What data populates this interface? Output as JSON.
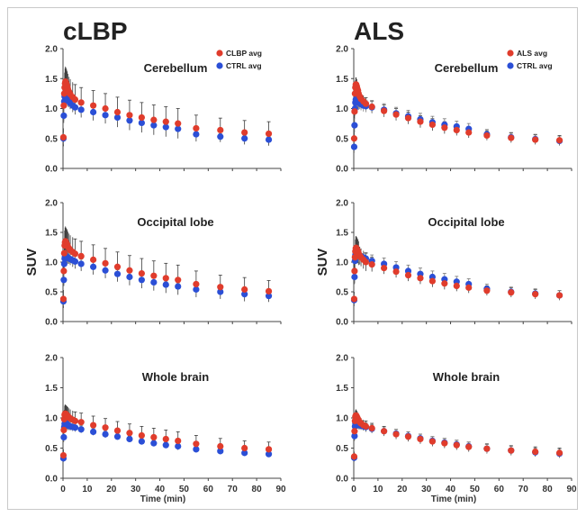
{
  "figure": {
    "columns": [
      {
        "title": "cLBP",
        "legend": [
          {
            "label": "CLBP avg",
            "color": "#e03c2c"
          },
          {
            "label": "CTRL avg",
            "color": "#2b4fd6"
          }
        ]
      },
      {
        "title": "ALS",
        "legend": [
          {
            "label": "ALS avg",
            "color": "#e03c2c"
          },
          {
            "label": "CTRL avg",
            "color": "#2b4fd6"
          }
        ]
      }
    ],
    "ylabel": "SUV",
    "xlabel": "Time (min)"
  },
  "chart_data": [
    {
      "type": "scatter",
      "title": "Cerebellum",
      "x": [
        0.17,
        0.33,
        0.5,
        0.67,
        0.83,
        1.0,
        1.25,
        1.5,
        1.75,
        2.0,
        2.5,
        3.0,
        4.0,
        5.0,
        7.5,
        12.5,
        17.5,
        22.5,
        27.5,
        32.5,
        37.5,
        42.5,
        47.5,
        55,
        65,
        75,
        85
      ],
      "series": [
        {
          "name": "CLBP avg",
          "color": "#e03c2c",
          "values": [
            0.52,
            1.05,
            1.25,
            1.35,
            1.42,
            1.45,
            1.43,
            1.4,
            1.37,
            1.33,
            1.28,
            1.24,
            1.19,
            1.15,
            1.1,
            1.05,
            1.0,
            0.94,
            0.89,
            0.85,
            0.81,
            0.78,
            0.75,
            0.67,
            0.64,
            0.6,
            0.58
          ],
          "err": [
            0.15,
            0.25,
            0.25,
            0.25,
            0.25,
            0.25,
            0.25,
            0.25,
            0.25,
            0.25,
            0.25,
            0.25,
            0.25,
            0.25,
            0.25,
            0.25,
            0.25,
            0.25,
            0.25,
            0.25,
            0.25,
            0.25,
            0.25,
            0.22,
            0.2,
            0.2,
            0.2
          ]
        },
        {
          "name": "CTRL avg",
          "color": "#2b4fd6",
          "values": [
            0.5,
            0.88,
            1.12,
            1.2,
            1.25,
            1.25,
            1.22,
            1.2,
            1.18,
            1.15,
            1.12,
            1.09,
            1.05,
            1.02,
            0.98,
            0.94,
            0.89,
            0.85,
            0.8,
            0.76,
            0.72,
            0.69,
            0.66,
            0.57,
            0.53,
            0.5,
            0.48
          ],
          "err": [
            0.1,
            0.12,
            0.12,
            0.12,
            0.12,
            0.12,
            0.12,
            0.12,
            0.12,
            0.12,
            0.1,
            0.1,
            0.1,
            0.1,
            0.08,
            0.08,
            0.08,
            0.07,
            0.07,
            0.07,
            0.07,
            0.06,
            0.06,
            0.06,
            0.05,
            0.05,
            0.05
          ]
        }
      ],
      "xlim": [
        0,
        90
      ],
      "ylim": [
        0,
        2
      ],
      "xticks": [
        0,
        10,
        20,
        30,
        40,
        50,
        60,
        70,
        80,
        90
      ],
      "yticks": [
        0.0,
        0.5,
        1.0,
        1.5,
        2.0
      ]
    },
    {
      "type": "scatter",
      "title": "Cerebellum",
      "x": [
        0.17,
        0.33,
        0.5,
        0.67,
        0.83,
        1.0,
        1.25,
        1.5,
        1.75,
        2.0,
        2.5,
        3.0,
        4.0,
        5.0,
        7.5,
        12.5,
        17.5,
        22.5,
        27.5,
        32.5,
        37.5,
        42.5,
        47.5,
        55,
        65,
        75,
        85
      ],
      "series": [
        {
          "name": "ALS avg",
          "color": "#e03c2c",
          "values": [
            0.5,
            0.95,
            1.25,
            1.35,
            1.4,
            1.4,
            1.37,
            1.33,
            1.3,
            1.25,
            1.2,
            1.16,
            1.12,
            1.08,
            1.03,
            0.96,
            0.9,
            0.84,
            0.78,
            0.73,
            0.68,
            0.64,
            0.6,
            0.55,
            0.51,
            0.48,
            0.47
          ],
          "err": [
            0.1,
            0.12,
            0.12,
            0.12,
            0.12,
            0.12,
            0.12,
            0.12,
            0.12,
            0.12,
            0.1,
            0.1,
            0.1,
            0.1,
            0.1,
            0.1,
            0.1,
            0.1,
            0.1,
            0.1,
            0.1,
            0.09,
            0.09,
            0.08,
            0.08,
            0.08,
            0.08
          ]
        },
        {
          "name": "CTRL avg",
          "color": "#2b4fd6",
          "values": [
            0.36,
            0.72,
            1.0,
            1.1,
            1.15,
            1.16,
            1.15,
            1.13,
            1.12,
            1.1,
            1.09,
            1.07,
            1.05,
            1.04,
            1.02,
            0.98,
            0.92,
            0.87,
            0.82,
            0.77,
            0.73,
            0.7,
            0.66,
            0.57,
            0.52,
            0.49,
            0.46
          ],
          "err": [
            0.1,
            0.12,
            0.12,
            0.12,
            0.12,
            0.12,
            0.12,
            0.12,
            0.12,
            0.12,
            0.1,
            0.1,
            0.1,
            0.1,
            0.1,
            0.1,
            0.1,
            0.1,
            0.1,
            0.1,
            0.1,
            0.09,
            0.09,
            0.08,
            0.08,
            0.08,
            0.08
          ]
        }
      ],
      "xlim": [
        0,
        90
      ],
      "ylim": [
        0,
        2
      ],
      "xticks": [
        0,
        10,
        20,
        30,
        40,
        50,
        60,
        70,
        80,
        90
      ],
      "yticks": [
        0.0,
        0.5,
        1.0,
        1.5,
        2.0
      ]
    },
    {
      "type": "scatter",
      "title": "Occipital lobe",
      "x": [
        0.17,
        0.33,
        0.5,
        0.67,
        0.83,
        1.0,
        1.25,
        1.5,
        1.75,
        2.0,
        2.5,
        3.0,
        4.0,
        5.0,
        7.5,
        12.5,
        17.5,
        22.5,
        27.5,
        32.5,
        37.5,
        42.5,
        47.5,
        55,
        65,
        75,
        85
      ],
      "series": [
        {
          "name": "CLBP avg",
          "color": "#e03c2c",
          "values": [
            0.38,
            0.85,
            1.15,
            1.28,
            1.33,
            1.35,
            1.33,
            1.31,
            1.29,
            1.26,
            1.23,
            1.2,
            1.17,
            1.14,
            1.1,
            1.04,
            0.98,
            0.92,
            0.86,
            0.81,
            0.77,
            0.73,
            0.7,
            0.63,
            0.58,
            0.54,
            0.51
          ],
          "err": [
            0.15,
            0.25,
            0.25,
            0.25,
            0.25,
            0.25,
            0.25,
            0.25,
            0.25,
            0.25,
            0.25,
            0.25,
            0.25,
            0.25,
            0.25,
            0.25,
            0.25,
            0.25,
            0.25,
            0.25,
            0.25,
            0.25,
            0.25,
            0.22,
            0.2,
            0.2,
            0.18
          ]
        },
        {
          "name": "CTRL avg",
          "color": "#2b4fd6",
          "values": [
            0.34,
            0.7,
            0.97,
            1.06,
            1.1,
            1.11,
            1.1,
            1.09,
            1.08,
            1.07,
            1.06,
            1.05,
            1.03,
            1.01,
            0.97,
            0.92,
            0.86,
            0.8,
            0.75,
            0.7,
            0.66,
            0.62,
            0.59,
            0.54,
            0.5,
            0.46,
            0.43
          ],
          "err": [
            0.08,
            0.1,
            0.1,
            0.1,
            0.1,
            0.1,
            0.1,
            0.1,
            0.1,
            0.1,
            0.09,
            0.09,
            0.09,
            0.09,
            0.08,
            0.08,
            0.08,
            0.07,
            0.07,
            0.07,
            0.07,
            0.06,
            0.06,
            0.06,
            0.05,
            0.05,
            0.05
          ]
        }
      ],
      "xlim": [
        0,
        90
      ],
      "ylim": [
        0,
        2
      ],
      "xticks": [
        0,
        10,
        20,
        30,
        40,
        50,
        60,
        70,
        80,
        90
      ],
      "yticks": [
        0.0,
        0.5,
        1.0,
        1.5,
        2.0
      ]
    },
    {
      "type": "scatter",
      "title": "Occipital lobe",
      "x": [
        0.17,
        0.33,
        0.5,
        0.67,
        0.83,
        1.0,
        1.25,
        1.5,
        1.75,
        2.0,
        2.5,
        3.0,
        4.0,
        5.0,
        7.5,
        12.5,
        17.5,
        22.5,
        27.5,
        32.5,
        37.5,
        42.5,
        47.5,
        55,
        65,
        75,
        85
      ],
      "series": [
        {
          "name": "ALS avg",
          "color": "#e03c2c",
          "values": [
            0.38,
            0.85,
            1.08,
            1.18,
            1.23,
            1.24,
            1.22,
            1.2,
            1.18,
            1.15,
            1.11,
            1.08,
            1.04,
            1.0,
            0.96,
            0.9,
            0.84,
            0.78,
            0.73,
            0.68,
            0.64,
            0.6,
            0.57,
            0.52,
            0.49,
            0.46,
            0.44
          ],
          "err": [
            0.12,
            0.2,
            0.2,
            0.2,
            0.2,
            0.2,
            0.2,
            0.2,
            0.2,
            0.2,
            0.15,
            0.15,
            0.15,
            0.15,
            0.12,
            0.1,
            0.1,
            0.1,
            0.1,
            0.1,
            0.1,
            0.09,
            0.09,
            0.08,
            0.08,
            0.08,
            0.08
          ]
        },
        {
          "name": "CTRL avg",
          "color": "#2b4fd6",
          "values": [
            0.36,
            0.75,
            1.02,
            1.12,
            1.16,
            1.17,
            1.16,
            1.15,
            1.14,
            1.12,
            1.11,
            1.1,
            1.08,
            1.06,
            1.02,
            0.97,
            0.91,
            0.85,
            0.8,
            0.75,
            0.71,
            0.67,
            0.63,
            0.55,
            0.5,
            0.47,
            0.44
          ],
          "err": [
            0.1,
            0.12,
            0.12,
            0.12,
            0.12,
            0.12,
            0.12,
            0.12,
            0.12,
            0.12,
            0.1,
            0.1,
            0.1,
            0.1,
            0.1,
            0.1,
            0.1,
            0.1,
            0.1,
            0.1,
            0.1,
            0.09,
            0.09,
            0.08,
            0.08,
            0.08,
            0.08
          ]
        }
      ],
      "xlim": [
        0,
        90
      ],
      "ylim": [
        0,
        2
      ],
      "xticks": [
        0,
        10,
        20,
        30,
        40,
        50,
        60,
        70,
        80,
        90
      ],
      "yticks": [
        0.0,
        0.5,
        1.0,
        1.5,
        2.0
      ]
    },
    {
      "type": "scatter",
      "title": "Whole brain",
      "x": [
        0.17,
        0.33,
        0.5,
        0.67,
        0.83,
        1.0,
        1.25,
        1.5,
        1.75,
        2.0,
        2.5,
        3.0,
        4.0,
        5.0,
        7.5,
        12.5,
        17.5,
        22.5,
        27.5,
        32.5,
        37.5,
        42.5,
        47.5,
        55,
        65,
        75,
        85
      ],
      "series": [
        {
          "name": "CLBP avg",
          "color": "#e03c2c",
          "values": [
            0.38,
            0.8,
            0.98,
            1.05,
            1.07,
            1.07,
            1.06,
            1.05,
            1.04,
            1.03,
            1.01,
            0.99,
            0.97,
            0.95,
            0.93,
            0.88,
            0.84,
            0.79,
            0.75,
            0.71,
            0.68,
            0.65,
            0.62,
            0.57,
            0.53,
            0.5,
            0.48
          ],
          "err": [
            0.1,
            0.15,
            0.15,
            0.15,
            0.15,
            0.15,
            0.15,
            0.15,
            0.15,
            0.15,
            0.15,
            0.15,
            0.15,
            0.15,
            0.15,
            0.15,
            0.15,
            0.15,
            0.15,
            0.15,
            0.15,
            0.15,
            0.15,
            0.14,
            0.13,
            0.12,
            0.12
          ]
        },
        {
          "name": "CTRL avg",
          "color": "#2b4fd6",
          "values": [
            0.33,
            0.68,
            0.85,
            0.9,
            0.92,
            0.92,
            0.91,
            0.9,
            0.89,
            0.88,
            0.87,
            0.86,
            0.85,
            0.84,
            0.81,
            0.77,
            0.73,
            0.69,
            0.65,
            0.61,
            0.58,
            0.55,
            0.53,
            0.48,
            0.45,
            0.42,
            0.4
          ],
          "err": [
            0.06,
            0.08,
            0.08,
            0.08,
            0.08,
            0.08,
            0.08,
            0.08,
            0.08,
            0.08,
            0.07,
            0.07,
            0.07,
            0.07,
            0.06,
            0.06,
            0.06,
            0.05,
            0.05,
            0.05,
            0.05,
            0.05,
            0.05,
            0.04,
            0.04,
            0.04,
            0.04
          ]
        }
      ],
      "xlim": [
        0,
        90
      ],
      "ylim": [
        0,
        2
      ],
      "xticks": [
        0,
        10,
        20,
        30,
        40,
        50,
        60,
        70,
        80,
        90
      ],
      "yticks": [
        0.0,
        0.5,
        1.0,
        1.5,
        2.0
      ]
    },
    {
      "type": "scatter",
      "title": "Whole brain",
      "x": [
        0.17,
        0.33,
        0.5,
        0.67,
        0.83,
        1.0,
        1.25,
        1.5,
        1.75,
        2.0,
        2.5,
        3.0,
        4.0,
        5.0,
        7.5,
        12.5,
        17.5,
        22.5,
        27.5,
        32.5,
        37.5,
        42.5,
        47.5,
        55,
        65,
        75,
        85
      ],
      "series": [
        {
          "name": "ALS avg",
          "color": "#e03c2c",
          "values": [
            0.36,
            0.78,
            0.95,
            1.02,
            1.04,
            1.04,
            1.02,
            1.0,
            0.98,
            0.96,
            0.93,
            0.91,
            0.88,
            0.86,
            0.83,
            0.78,
            0.73,
            0.69,
            0.65,
            0.61,
            0.58,
            0.55,
            0.52,
            0.49,
            0.46,
            0.44,
            0.42
          ],
          "err": [
            0.08,
            0.1,
            0.1,
            0.1,
            0.1,
            0.1,
            0.1,
            0.1,
            0.1,
            0.1,
            0.09,
            0.09,
            0.09,
            0.09,
            0.08,
            0.08,
            0.08,
            0.08,
            0.08,
            0.08,
            0.08,
            0.08,
            0.08,
            0.08,
            0.08,
            0.08,
            0.08
          ]
        },
        {
          "name": "CTRL avg",
          "color": "#2b4fd6",
          "values": [
            0.34,
            0.7,
            0.86,
            0.91,
            0.93,
            0.93,
            0.92,
            0.91,
            0.9,
            0.89,
            0.88,
            0.87,
            0.86,
            0.85,
            0.82,
            0.78,
            0.74,
            0.7,
            0.66,
            0.62,
            0.59,
            0.56,
            0.53,
            0.49,
            0.46,
            0.43,
            0.41
          ],
          "err": [
            0.06,
            0.08,
            0.08,
            0.08,
            0.08,
            0.08,
            0.08,
            0.08,
            0.08,
            0.08,
            0.07,
            0.07,
            0.07,
            0.07,
            0.07,
            0.07,
            0.07,
            0.07,
            0.07,
            0.07,
            0.07,
            0.07,
            0.07,
            0.07,
            0.07,
            0.07,
            0.07
          ]
        }
      ],
      "xlim": [
        0,
        90
      ],
      "ylim": [
        0,
        2
      ],
      "xticks": [
        0,
        10,
        20,
        30,
        40,
        50,
        60,
        70,
        80,
        90
      ],
      "yticks": [
        0.0,
        0.5,
        1.0,
        1.5,
        2.0
      ]
    }
  ]
}
